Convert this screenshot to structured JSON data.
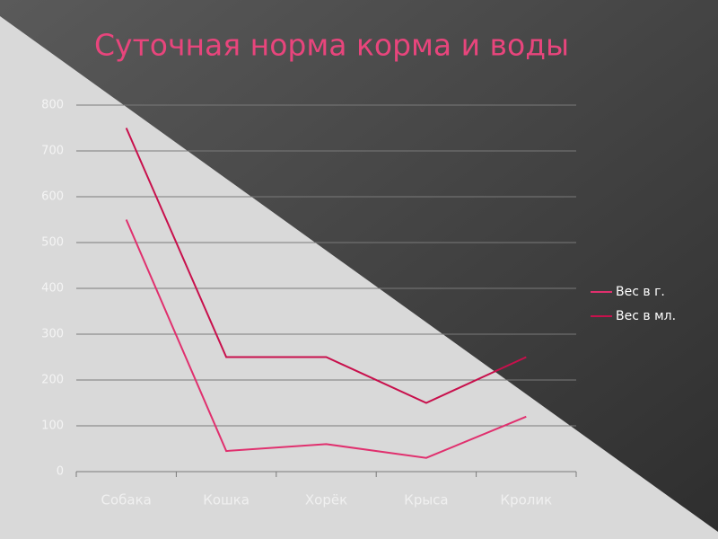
{
  "chart_data": {
    "type": "line",
    "title": "Суточная норма корма и воды",
    "categories": [
      "Собака",
      "Кошка",
      "Хорёк",
      "Крыса",
      "Кролик"
    ],
    "series": [
      {
        "name": "Вес в г.",
        "color": "#e0306e",
        "values": [
          550,
          45,
          60,
          30,
          120
        ]
      },
      {
        "name": "Вес в мл.",
        "color": "#c8104c",
        "values": [
          750,
          250,
          250,
          150,
          250
        ]
      }
    ],
    "ylim": [
      0,
      800
    ],
    "yticks": [
      0,
      100,
      200,
      300,
      400,
      500,
      600,
      700,
      800
    ],
    "grid": true,
    "legend": "right"
  }
}
